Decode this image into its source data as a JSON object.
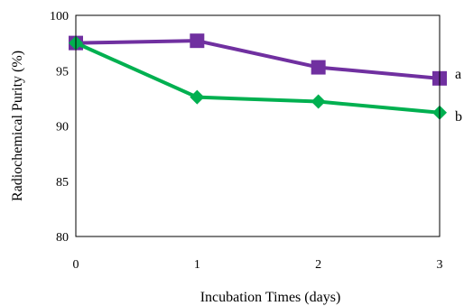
{
  "chart_data": {
    "type": "line",
    "title": "",
    "xlabel": "Incubation Times (days)",
    "ylabel": "Radiochemical Purity (%)",
    "x": [
      0,
      1,
      2,
      3
    ],
    "x_tick_labels": [
      "0",
      "1",
      "2",
      "3"
    ],
    "ylim": [
      80,
      100
    ],
    "y_ticks": [
      80,
      85,
      90,
      95,
      100
    ],
    "y_tick_labels": [
      "80",
      "85",
      "90",
      "95",
      "100"
    ],
    "grid": false,
    "legend": "none",
    "series": [
      {
        "name": "a",
        "values": [
          97.5,
          97.7,
          95.3,
          94.3
        ],
        "color": "#7030a0",
        "marker": "square"
      },
      {
        "name": "b",
        "values": [
          97.5,
          92.6,
          92.2,
          91.2
        ],
        "color": "#00b050",
        "marker": "diamond"
      }
    ]
  }
}
